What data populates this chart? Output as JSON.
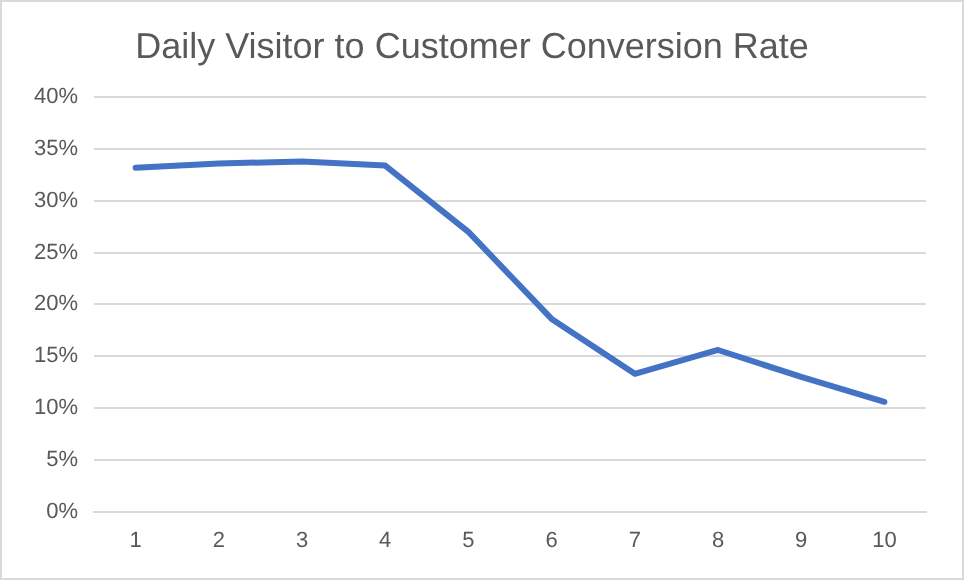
{
  "chart_data": {
    "type": "line",
    "title": "Daily Visitor to Customer Conversion Rate",
    "categories": [
      "1",
      "2",
      "3",
      "4",
      "5",
      "6",
      "7",
      "8",
      "9",
      "10"
    ],
    "series": [
      {
        "color": "#4472c4",
        "values": [
          33.2,
          33.6,
          33.8,
          33.4,
          27.0,
          18.6,
          13.3,
          15.6,
          13.0,
          10.6
        ]
      }
    ],
    "ylim": [
      0,
      40
    ],
    "yticks": [
      {
        "value": 0,
        "label": "0%"
      },
      {
        "value": 5,
        "label": "5%"
      },
      {
        "value": 10,
        "label": "10%"
      },
      {
        "value": 15,
        "label": "15%"
      },
      {
        "value": 20,
        "label": "20%"
      },
      {
        "value": 25,
        "label": "25%"
      },
      {
        "value": 30,
        "label": "30%"
      },
      {
        "value": 35,
        "label": "35%"
      },
      {
        "value": 40,
        "label": "40%"
      }
    ],
    "grid": "y",
    "legend": false,
    "marker": "none",
    "line_style": "solid"
  }
}
